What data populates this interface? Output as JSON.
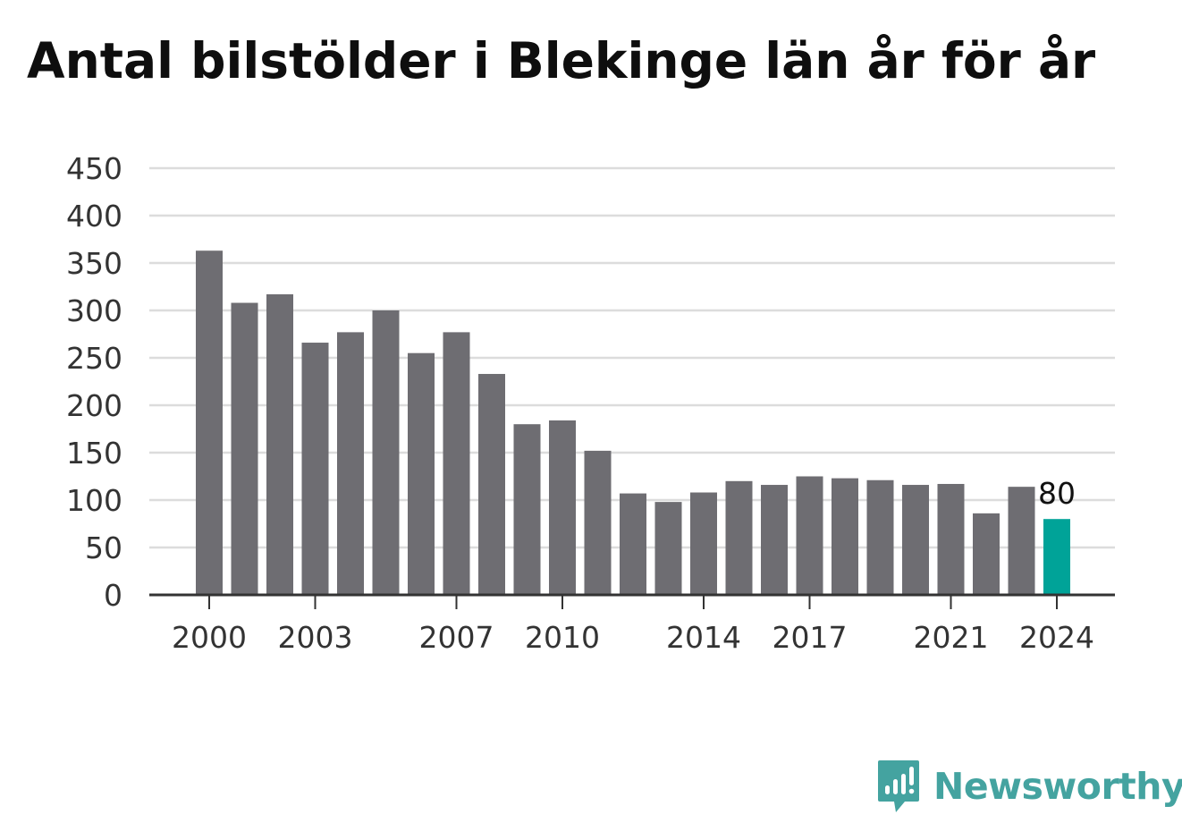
{
  "title": "Antal bilstölder i Blekinge län år för år",
  "brand": {
    "name": "Newsworthy"
  },
  "chart_data": {
    "type": "bar",
    "title": "Antal bilstölder i Blekinge län år för år",
    "xlabel": "",
    "ylabel": "",
    "categories": [
      "2000",
      "2001",
      "2002",
      "2003",
      "2004",
      "2005",
      "2006",
      "2007",
      "2008",
      "2009",
      "2010",
      "2011",
      "2012",
      "2013",
      "2014",
      "2015",
      "2016",
      "2017",
      "2018",
      "2019",
      "2020",
      "2021",
      "2022",
      "2023",
      "2024"
    ],
    "values": [
      363,
      308,
      317,
      266,
      277,
      300,
      255,
      277,
      233,
      180,
      184,
      152,
      107,
      98,
      108,
      120,
      116,
      125,
      123,
      121,
      116,
      117,
      86,
      114,
      80
    ],
    "ylim": [
      0,
      450
    ],
    "yticks": [
      0,
      50,
      100,
      150,
      200,
      250,
      300,
      350,
      400,
      450
    ],
    "xtick_labels": [
      "2000",
      "2003",
      "2007",
      "2010",
      "2014",
      "2017",
      "2021",
      "2024"
    ],
    "highlight": {
      "category": "2024",
      "label": "80"
    },
    "grid": true,
    "colors": {
      "bar": "#6e6d72",
      "highlight": "#00a398",
      "grid": "#dcdcdc",
      "axis": "#333333",
      "brand": "#44a3a0"
    }
  }
}
